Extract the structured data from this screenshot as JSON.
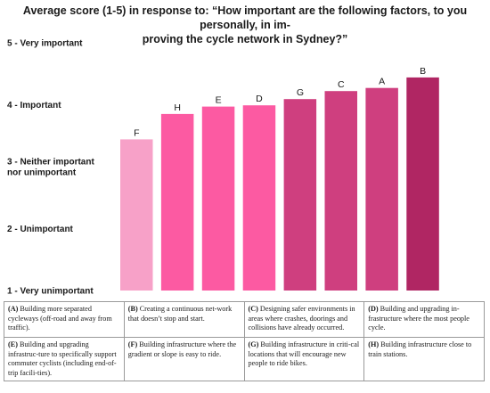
{
  "chart_data": {
    "type": "bar",
    "title": "Average score (1-5) in response to: “How important are the following factors, to you personally, in improving the cycle network in Sydney?”",
    "title_line1": "Average score (1-5) in response to: “How important are the following factors, to you personally, in im-",
    "title_line2": "proving the cycle network in Sydney?”",
    "categories": [
      "F",
      "H",
      "E",
      "D",
      "G",
      "C",
      "A",
      "B"
    ],
    "values": [
      3.44,
      3.85,
      3.97,
      3.99,
      4.09,
      4.22,
      4.27,
      4.44
    ],
    "colors": [
      "#f7a1c8",
      "#fc5aa2",
      "#fc5aa2",
      "#fc5aa2",
      "#cf3f7f",
      "#cf3f7f",
      "#cf3f7f",
      "#b02663"
    ],
    "ylim": [
      1,
      5
    ],
    "yticks": [
      {
        "value": 5,
        "lines": [
          "5 - Very important"
        ]
      },
      {
        "value": 4,
        "lines": [
          "4 - Important"
        ]
      },
      {
        "value": 3,
        "lines": [
          "3 - Neither important",
          "nor unimportant"
        ]
      },
      {
        "value": 2,
        "lines": [
          "2 - Unimportant"
        ]
      },
      {
        "value": 1,
        "lines": [
          "1 - Very unimportant"
        ]
      }
    ],
    "grid": false,
    "xlabel": "",
    "ylabel": ""
  },
  "legend": [
    [
      {
        "key": "(A)",
        "text": "Building more separated cycleways (off-road and away from traffic)."
      },
      {
        "key": "(B)",
        "text": "Creating a continuous net-work that doesn’t stop and start."
      },
      {
        "key": "(C)",
        "text": "Designing safer environments in areas where crashes, doorings and collisions have already occurred."
      },
      {
        "key": "(D)",
        "text": "Building and upgrading in-frastructure where the most people cycle."
      }
    ],
    [
      {
        "key": "(E)",
        "text": "Building and upgrading infrastruc-ture to specifically support commuter cyclists (including end-of-trip facili-ties)."
      },
      {
        "key": "(F)",
        "text": "Building infrastructure where the gradient or slope is easy to ride."
      },
      {
        "key": "(G)",
        "text": "Building infrastructure in criti-cal locations that will encourage new people to ride bikes."
      },
      {
        "key": "(H)",
        "text": "Building infrastructure close to train stations."
      }
    ]
  ]
}
